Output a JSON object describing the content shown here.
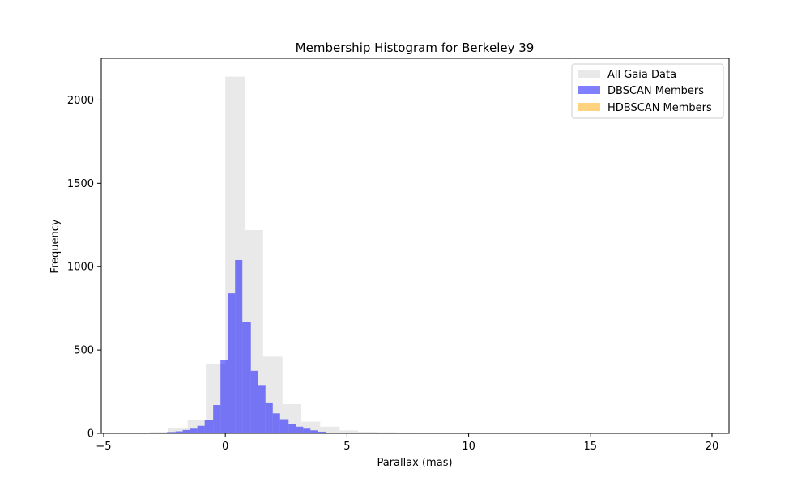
{
  "chart_data": {
    "type": "bar",
    "title": "Membership Histogram for Berkeley 39",
    "xlabel": "Parallax (mas)",
    "ylabel": "Frequency",
    "xlim": [
      -5.1,
      20.7
    ],
    "ylim": [
      0,
      2250
    ],
    "xticks": [
      -5,
      0,
      5,
      10,
      15,
      20
    ],
    "yticks": [
      0,
      500,
      1000,
      1500,
      2000
    ],
    "grid": false,
    "legend_position": "top-right",
    "series": [
      {
        "name": "All Gaia Data",
        "color": "#d3d3d3",
        "opacity": 0.5,
        "bin_edges": [
          -4.7,
          -3.9,
          -3.1,
          -2.35,
          -1.55,
          -0.8,
          0.0,
          0.8,
          1.55,
          2.35,
          3.1,
          3.9,
          4.7,
          5.45,
          6.25,
          7.0,
          7.8,
          8.6,
          9.35,
          10.15,
          10.9,
          11.7,
          12.5,
          13.25,
          14.05,
          14.8,
          15.6,
          16.4,
          17.15,
          17.95,
          18.7,
          19.5
        ],
        "values": [
          2,
          4,
          8,
          30,
          80,
          415,
          2140,
          1220,
          460,
          175,
          70,
          40,
          18,
          10,
          7,
          5,
          3,
          3,
          2,
          2,
          1,
          1,
          1,
          1,
          1,
          1,
          1,
          1,
          1,
          1,
          1
        ]
      },
      {
        "name": "DBSCAN Members",
        "color": "#0000ff",
        "opacity": 0.5,
        "bin_edges": [
          -3.0,
          -2.7,
          -2.4,
          -2.05,
          -1.75,
          -1.45,
          -1.15,
          -0.85,
          -0.5,
          -0.2,
          0.1,
          0.4,
          0.7,
          1.05,
          1.35,
          1.65,
          1.95,
          2.25,
          2.6,
          2.9,
          3.2,
          3.5,
          3.8,
          4.15
        ],
        "values": [
          3,
          5,
          8,
          12,
          20,
          28,
          45,
          80,
          170,
          440,
          840,
          1040,
          670,
          375,
          290,
          185,
          120,
          85,
          55,
          40,
          28,
          18,
          10
        ]
      },
      {
        "name": "HDBSCAN Members",
        "color": "#ffa500",
        "opacity": 0.5,
        "bin_edges": [],
        "values": []
      }
    ]
  }
}
